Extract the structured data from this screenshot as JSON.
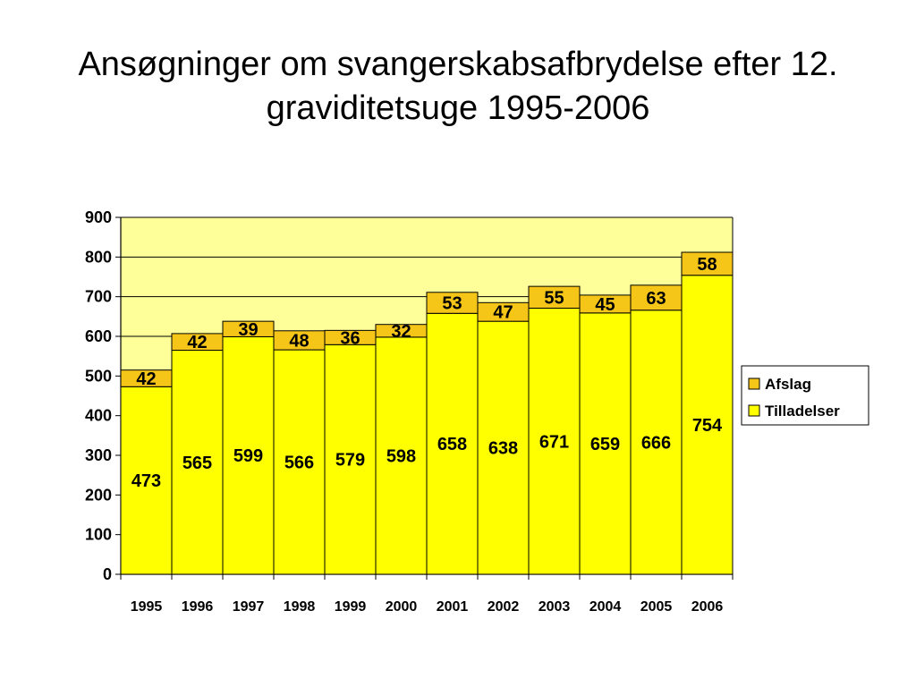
{
  "chart_data": {
    "type": "bar",
    "stacked": true,
    "title_lines": [
      "Ansøgninger om svangerskabsafbrydelse efter 12.",
      "graviditetsuge 1995-2006"
    ],
    "categories": [
      "1995",
      "1996",
      "1997",
      "1998",
      "1999",
      "2000",
      "2001",
      "2002",
      "2003",
      "2004",
      "2005",
      "2006"
    ],
    "series": [
      {
        "name": "Tilladelser",
        "color": "#ffff00",
        "values": [
          473,
          565,
          599,
          566,
          579,
          598,
          658,
          638,
          671,
          659,
          666,
          754
        ]
      },
      {
        "name": "Afslag",
        "color": "#f5c518",
        "values": [
          42,
          42,
          39,
          48,
          36,
          32,
          53,
          47,
          55,
          45,
          63,
          58
        ]
      }
    ],
    "ylim": [
      0,
      900
    ],
    "yticks": [
      "0",
      "100",
      "200",
      "300",
      "400",
      "500",
      "600",
      "700",
      "800",
      "900"
    ],
    "grid": true,
    "plot_background": "#ffff99",
    "legend_position": "right",
    "legend_order": [
      "Afslag",
      "Tilladelser"
    ],
    "xlabel": "",
    "ylabel": ""
  }
}
